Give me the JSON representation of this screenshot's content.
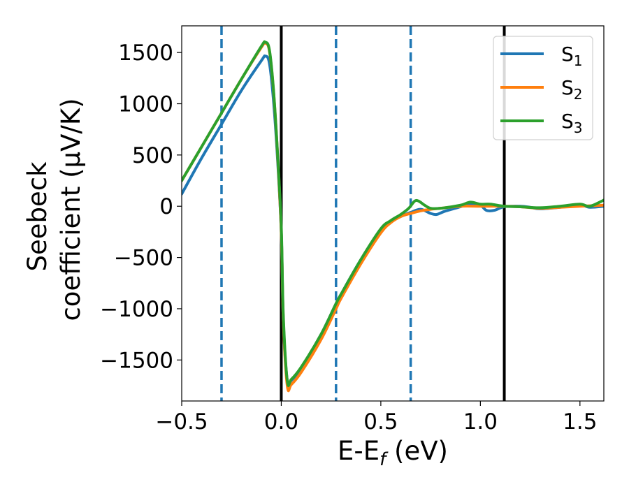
{
  "chart_data": {
    "type": "line",
    "xlabel": "E-E",
    "xlabel_sub": "f",
    "xlabel_unit": " (eV)",
    "ylabel_line1": "Seebeck",
    "ylabel_line2": "coefficient  (μV/K)",
    "xlim": [
      -0.5,
      1.62
    ],
    "ylim": [
      -1900,
      1760
    ],
    "xticks": [
      -0.5,
      0.0,
      0.5,
      1.0,
      1.5
    ],
    "xtick_labels": [
      "−0.5",
      "0.0",
      "0.5",
      "1.0",
      "1.5"
    ],
    "yticks": [
      1500,
      1000,
      500,
      0,
      -500,
      -1000,
      -1500
    ],
    "ytick_labels": [
      "1500",
      "1000",
      "500",
      "0",
      "−500",
      "−1000",
      "−1500"
    ],
    "grid": false,
    "legend_position": "top-right",
    "vlines": [
      {
        "x": -0.3,
        "style": "dashed",
        "color": "#1f77b4"
      },
      {
        "x": 0.0,
        "style": "solid",
        "color": "#000000"
      },
      {
        "x": 0.275,
        "style": "dashed",
        "color": "#1f77b4"
      },
      {
        "x": 0.65,
        "style": "dashed",
        "color": "#1f77b4"
      },
      {
        "x": 1.12,
        "style": "solid",
        "color": "#000000"
      }
    ],
    "series": [
      {
        "name": "S",
        "sub": "1",
        "color": "#1f77b4",
        "points": [
          [
            -0.5,
            120
          ],
          [
            -0.4,
            470
          ],
          [
            -0.3,
            800
          ],
          [
            -0.2,
            1130
          ],
          [
            -0.1,
            1420
          ],
          [
            -0.08,
            1465
          ],
          [
            -0.06,
            1400
          ],
          [
            -0.04,
            1050
          ],
          [
            -0.02,
            500
          ],
          [
            0.0,
            -250
          ],
          [
            0.01,
            -1100
          ],
          [
            0.03,
            -1700
          ],
          [
            0.05,
            -1700
          ],
          [
            0.1,
            -1580
          ],
          [
            0.2,
            -1250
          ],
          [
            0.275,
            -950
          ],
          [
            0.3,
            -860
          ],
          [
            0.4,
            -520
          ],
          [
            0.5,
            -230
          ],
          [
            0.55,
            -150
          ],
          [
            0.6,
            -100
          ],
          [
            0.65,
            -60
          ],
          [
            0.7,
            -30
          ],
          [
            0.75,
            -70
          ],
          [
            0.78,
            -80
          ],
          [
            0.82,
            -50
          ],
          [
            0.9,
            -5
          ],
          [
            0.95,
            25
          ],
          [
            1.0,
            10
          ],
          [
            1.03,
            -40
          ],
          [
            1.07,
            -40
          ],
          [
            1.12,
            -5
          ],
          [
            1.2,
            0
          ],
          [
            1.25,
            -10
          ],
          [
            1.3,
            -25
          ],
          [
            1.4,
            -10
          ],
          [
            1.5,
            10
          ],
          [
            1.55,
            -10
          ],
          [
            1.62,
            0
          ]
        ]
      },
      {
        "name": "S",
        "sub": "2",
        "color": "#ff7f0e",
        "points": [
          [
            -0.5,
            250
          ],
          [
            -0.4,
            580
          ],
          [
            -0.3,
            910
          ],
          [
            -0.2,
            1240
          ],
          [
            -0.1,
            1550
          ],
          [
            -0.08,
            1590
          ],
          [
            -0.06,
            1520
          ],
          [
            -0.04,
            1150
          ],
          [
            -0.02,
            550
          ],
          [
            0.0,
            -250
          ],
          [
            0.01,
            -1100
          ],
          [
            0.03,
            -1750
          ],
          [
            0.05,
            -1740
          ],
          [
            0.1,
            -1620
          ],
          [
            0.2,
            -1300
          ],
          [
            0.275,
            -1000
          ],
          [
            0.3,
            -900
          ],
          [
            0.4,
            -560
          ],
          [
            0.5,
            -260
          ],
          [
            0.55,
            -160
          ],
          [
            0.6,
            -100
          ],
          [
            0.65,
            -70
          ],
          [
            0.7,
            -45
          ],
          [
            0.75,
            -30
          ],
          [
            0.8,
            -20
          ],
          [
            0.9,
            0
          ],
          [
            1.0,
            0
          ],
          [
            1.12,
            0
          ],
          [
            1.2,
            -5
          ],
          [
            1.3,
            -20
          ],
          [
            1.4,
            -10
          ],
          [
            1.5,
            0
          ],
          [
            1.62,
            10
          ]
        ]
      },
      {
        "name": "S",
        "sub": "3",
        "color": "#2ca02c",
        "points": [
          [
            -0.5,
            250
          ],
          [
            -0.4,
            580
          ],
          [
            -0.3,
            910
          ],
          [
            -0.2,
            1240
          ],
          [
            -0.1,
            1560
          ],
          [
            -0.08,
            1600
          ],
          [
            -0.06,
            1530
          ],
          [
            -0.04,
            1160
          ],
          [
            -0.02,
            560
          ],
          [
            0.0,
            -200
          ],
          [
            0.01,
            -1050
          ],
          [
            0.03,
            -1700
          ],
          [
            0.05,
            -1690
          ],
          [
            0.1,
            -1570
          ],
          [
            0.2,
            -1250
          ],
          [
            0.275,
            -950
          ],
          [
            0.3,
            -860
          ],
          [
            0.4,
            -520
          ],
          [
            0.5,
            -220
          ],
          [
            0.55,
            -140
          ],
          [
            0.6,
            -80
          ],
          [
            0.64,
            -20
          ],
          [
            0.67,
            50
          ],
          [
            0.69,
            50
          ],
          [
            0.72,
            10
          ],
          [
            0.75,
            -20
          ],
          [
            0.8,
            -20
          ],
          [
            0.9,
            10
          ],
          [
            0.95,
            40
          ],
          [
            1.0,
            20
          ],
          [
            1.05,
            20
          ],
          [
            1.12,
            0
          ],
          [
            1.2,
            -5
          ],
          [
            1.3,
            -15
          ],
          [
            1.4,
            0
          ],
          [
            1.5,
            20
          ],
          [
            1.55,
            0
          ],
          [
            1.62,
            60
          ]
        ]
      }
    ]
  }
}
